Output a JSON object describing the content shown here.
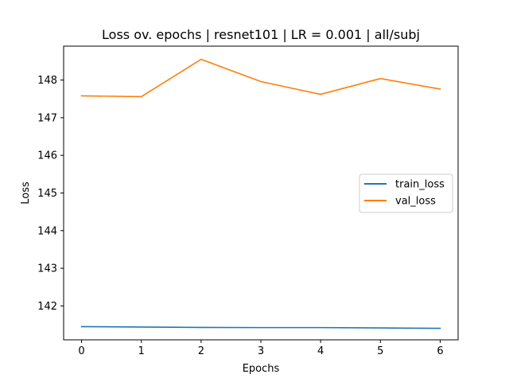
{
  "chart_data": {
    "type": "line",
    "title": "Loss ov. epochs | resnet101 | LR = 0.001 | all/subj",
    "xlabel": "Epochs",
    "ylabel": "Loss",
    "x": [
      0,
      1,
      2,
      3,
      4,
      5,
      6
    ],
    "xticks": [
      "0",
      "1",
      "2",
      "3",
      "4",
      "5",
      "6"
    ],
    "yticks": [
      "142",
      "143",
      "144",
      "145",
      "146",
      "147",
      "148"
    ],
    "ytick_values": [
      142,
      143,
      144,
      145,
      146,
      147,
      148
    ],
    "xlim": [
      -0.3,
      6.3
    ],
    "ylim": [
      141.1,
      148.9
    ],
    "grid": false,
    "legend_position": "center-right",
    "series": [
      {
        "name": "train_loss",
        "color": "#1f77b4",
        "values": [
          141.45,
          141.44,
          141.43,
          141.425,
          141.425,
          141.415,
          141.405
        ]
      },
      {
        "name": "val_loss",
        "color": "#ff7f0e",
        "values": [
          147.58,
          147.56,
          148.55,
          147.96,
          147.62,
          148.04,
          147.76
        ]
      }
    ]
  }
}
